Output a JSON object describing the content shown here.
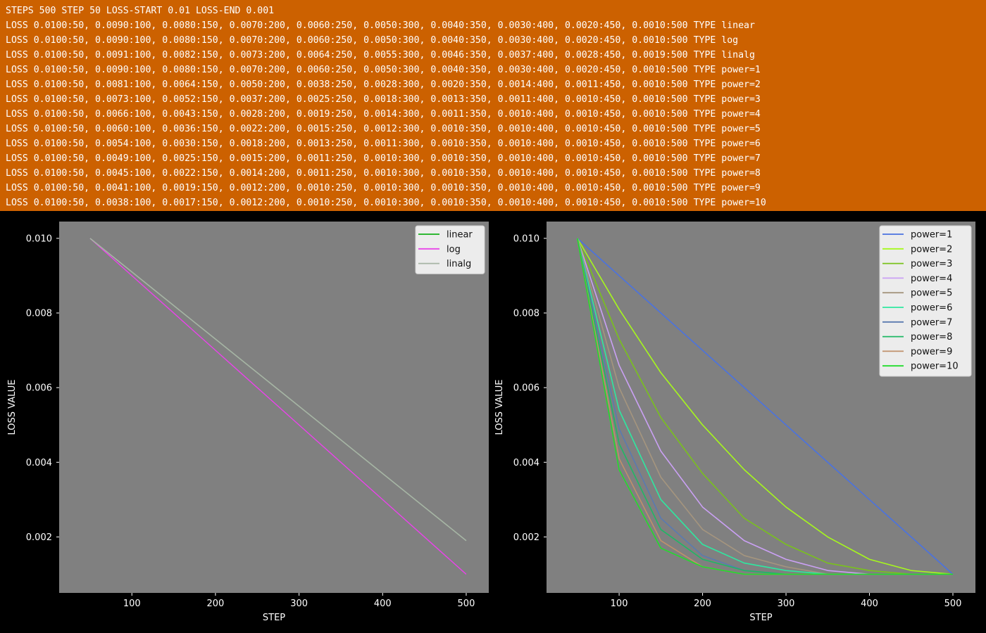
{
  "header": {
    "lines": [
      "STEPS 500 STEP 50 LOSS-START 0.01 LOSS-END 0.001",
      "LOSS 0.0100:50, 0.0090:100, 0.0080:150, 0.0070:200, 0.0060:250, 0.0050:300, 0.0040:350, 0.0030:400, 0.0020:450, 0.0010:500 TYPE linear",
      "LOSS 0.0100:50, 0.0090:100, 0.0080:150, 0.0070:200, 0.0060:250, 0.0050:300, 0.0040:350, 0.0030:400, 0.0020:450, 0.0010:500 TYPE log",
      "LOSS 0.0100:50, 0.0091:100, 0.0082:150, 0.0073:200, 0.0064:250, 0.0055:300, 0.0046:350, 0.0037:400, 0.0028:450, 0.0019:500 TYPE linalg",
      "LOSS 0.0100:50, 0.0090:100, 0.0080:150, 0.0070:200, 0.0060:250, 0.0050:300, 0.0040:350, 0.0030:400, 0.0020:450, 0.0010:500 TYPE power=1",
      "LOSS 0.0100:50, 0.0081:100, 0.0064:150, 0.0050:200, 0.0038:250, 0.0028:300, 0.0020:350, 0.0014:400, 0.0011:450, 0.0010:500 TYPE power=2",
      "LOSS 0.0100:50, 0.0073:100, 0.0052:150, 0.0037:200, 0.0025:250, 0.0018:300, 0.0013:350, 0.0011:400, 0.0010:450, 0.0010:500 TYPE power=3",
      "LOSS 0.0100:50, 0.0066:100, 0.0043:150, 0.0028:200, 0.0019:250, 0.0014:300, 0.0011:350, 0.0010:400, 0.0010:450, 0.0010:500 TYPE power=4",
      "LOSS 0.0100:50, 0.0060:100, 0.0036:150, 0.0022:200, 0.0015:250, 0.0012:300, 0.0010:350, 0.0010:400, 0.0010:450, 0.0010:500 TYPE power=5",
      "LOSS 0.0100:50, 0.0054:100, 0.0030:150, 0.0018:200, 0.0013:250, 0.0011:300, 0.0010:350, 0.0010:400, 0.0010:450, 0.0010:500 TYPE power=6",
      "LOSS 0.0100:50, 0.0049:100, 0.0025:150, 0.0015:200, 0.0011:250, 0.0010:300, 0.0010:350, 0.0010:400, 0.0010:450, 0.0010:500 TYPE power=7",
      "LOSS 0.0100:50, 0.0045:100, 0.0022:150, 0.0014:200, 0.0011:250, 0.0010:300, 0.0010:350, 0.0010:400, 0.0010:450, 0.0010:500 TYPE power=8",
      "LOSS 0.0100:50, 0.0041:100, 0.0019:150, 0.0012:200, 0.0010:250, 0.0010:300, 0.0010:350, 0.0010:400, 0.0010:450, 0.0010:500 TYPE power=9",
      "LOSS 0.0100:50, 0.0038:100, 0.0017:150, 0.0012:200, 0.0010:250, 0.0010:300, 0.0010:350, 0.0010:400, 0.0010:450, 0.0010:500 TYPE power=10"
    ]
  },
  "colors": {
    "header_bg": "#cc6100",
    "page_bg": "#000000",
    "plot_bg": "#808080"
  },
  "chart_data": [
    {
      "type": "line",
      "xlabel": "STEP",
      "ylabel": "LOSS VALUE",
      "x": [
        50,
        100,
        150,
        200,
        250,
        300,
        350,
        400,
        450,
        500
      ],
      "xticks": [
        "100",
        "200",
        "300",
        "400",
        "500"
      ],
      "yticks": [
        "0.002",
        "0.004",
        "0.006",
        "0.008",
        "0.010"
      ],
      "xlim": [
        13,
        527
      ],
      "ylim": [
        0.0005,
        0.01045
      ],
      "legend": "top-right",
      "grid": false,
      "series": [
        {
          "name": "linear",
          "color": "#15b01a",
          "values": [
            0.01,
            0.009,
            0.008,
            0.007,
            0.006,
            0.005,
            0.004,
            0.003,
            0.002,
            0.001
          ]
        },
        {
          "name": "log",
          "color": "#e845e8",
          "values": [
            0.01,
            0.009,
            0.008,
            0.007,
            0.006,
            0.005,
            0.004,
            0.003,
            0.002,
            0.001
          ]
        },
        {
          "name": "linalg",
          "color": "#a6b5a4",
          "values": [
            0.01,
            0.0091,
            0.0082,
            0.0073,
            0.0064,
            0.0055,
            0.0046,
            0.0037,
            0.0028,
            0.0019
          ]
        }
      ]
    },
    {
      "type": "line",
      "xlabel": "STEP",
      "ylabel": "LOSS VALUE",
      "x": [
        50,
        100,
        150,
        200,
        250,
        300,
        350,
        400,
        450,
        500
      ],
      "xticks": [
        "100",
        "200",
        "300",
        "400",
        "500"
      ],
      "yticks": [
        "0.002",
        "0.004",
        "0.006",
        "0.008",
        "0.010"
      ],
      "xlim": [
        13,
        527
      ],
      "ylim": [
        0.0005,
        0.01045
      ],
      "legend": "top-right",
      "grid": false,
      "series": [
        {
          "name": "power=1",
          "color": "#4a72e0",
          "values": [
            0.01,
            0.009,
            0.008,
            0.007,
            0.006,
            0.005,
            0.004,
            0.003,
            0.002,
            0.001
          ]
        },
        {
          "name": "power=2",
          "color": "#a6f81c",
          "values": [
            0.01,
            0.0081,
            0.0064,
            0.005,
            0.0038,
            0.0028,
            0.002,
            0.0014,
            0.0011,
            0.001
          ]
        },
        {
          "name": "power=3",
          "color": "#79c21b",
          "values": [
            0.01,
            0.0073,
            0.0052,
            0.0037,
            0.0025,
            0.0018,
            0.0013,
            0.0011,
            0.001,
            0.001
          ]
        },
        {
          "name": "power=4",
          "color": "#caa0f4",
          "values": [
            0.01,
            0.0066,
            0.0043,
            0.0028,
            0.0019,
            0.0014,
            0.0011,
            0.001,
            0.001,
            0.001
          ]
        },
        {
          "name": "power=5",
          "color": "#a5957e",
          "values": [
            0.01,
            0.006,
            0.0036,
            0.0022,
            0.0015,
            0.0012,
            0.001,
            0.001,
            0.001,
            0.001
          ]
        },
        {
          "name": "power=6",
          "color": "#2ee8a0",
          "values": [
            0.01,
            0.0054,
            0.003,
            0.0018,
            0.0013,
            0.0011,
            0.001,
            0.001,
            0.001,
            0.001
          ]
        },
        {
          "name": "power=7",
          "color": "#5a7ab0",
          "values": [
            0.01,
            0.0049,
            0.0025,
            0.0015,
            0.0011,
            0.001,
            0.001,
            0.001,
            0.001,
            0.001
          ]
        },
        {
          "name": "power=8",
          "color": "#1eb864",
          "values": [
            0.01,
            0.0045,
            0.0022,
            0.0014,
            0.0011,
            0.001,
            0.001,
            0.001,
            0.001,
            0.001
          ]
        },
        {
          "name": "power=9",
          "color": "#c0906a",
          "values": [
            0.01,
            0.0041,
            0.0019,
            0.0012,
            0.001,
            0.001,
            0.001,
            0.001,
            0.001,
            0.001
          ]
        },
        {
          "name": "power=10",
          "color": "#22dc2c",
          "values": [
            0.01,
            0.0038,
            0.0017,
            0.0012,
            0.001,
            0.001,
            0.001,
            0.001,
            0.001,
            0.001
          ]
        }
      ]
    }
  ]
}
